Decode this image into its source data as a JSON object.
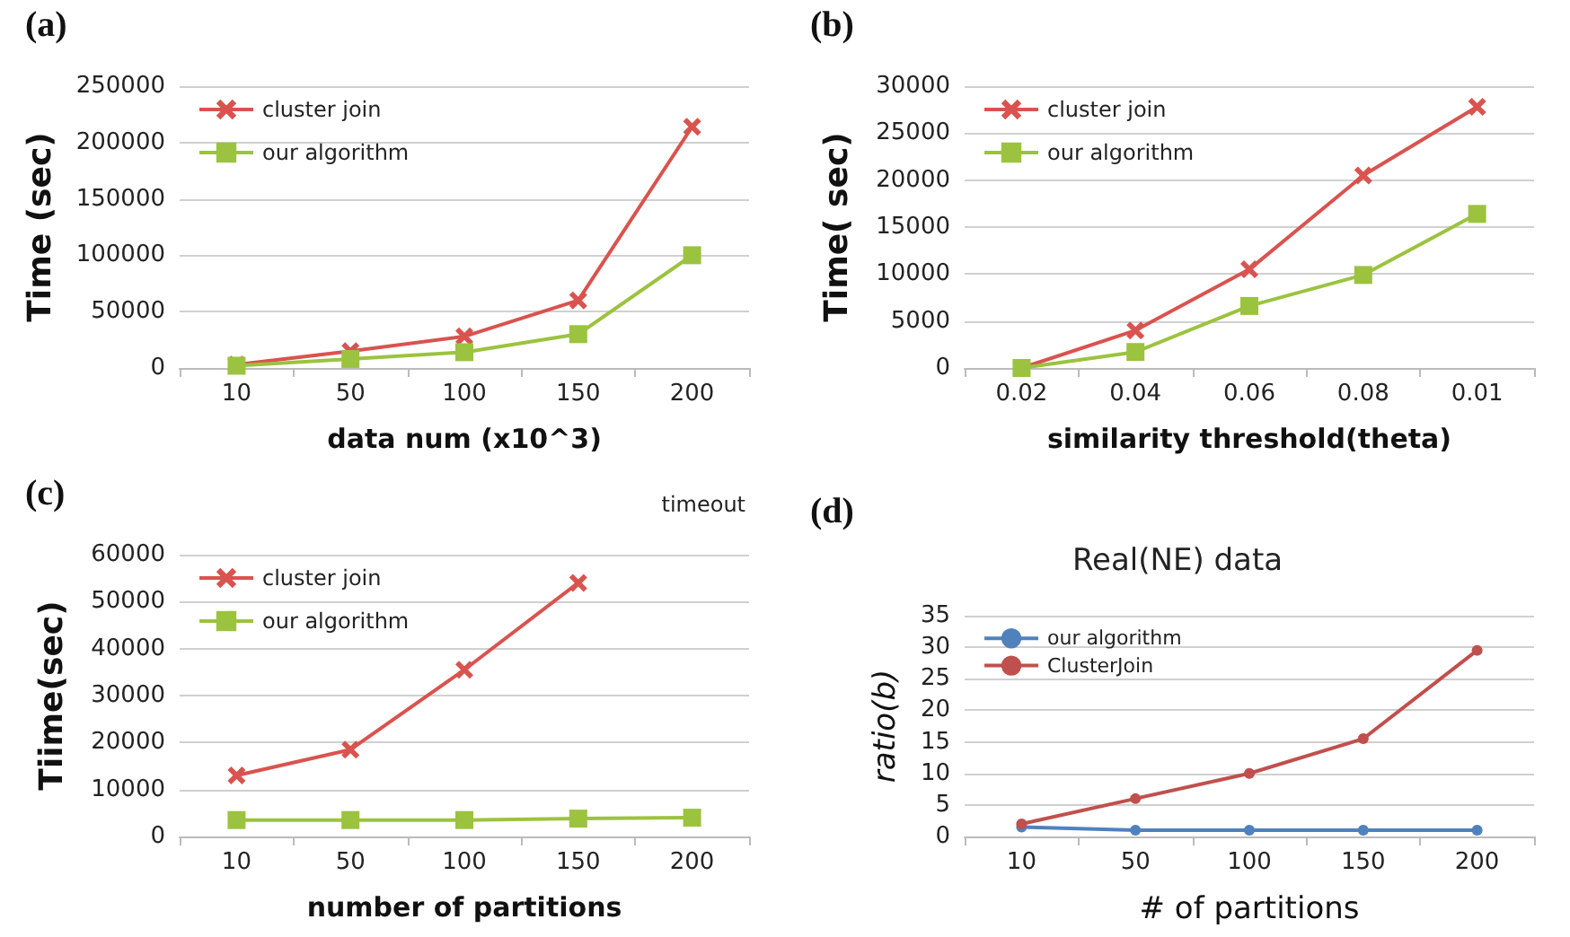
{
  "chart_data": [
    {
      "type": "line",
      "title": "(a)",
      "xlabel": "data num (x10^3)",
      "ylabel": "Time (sec)",
      "categories": [
        "10",
        "50",
        "100",
        "150",
        "200"
      ],
      "ylim": [
        0,
        250000
      ],
      "yticks": [
        0,
        50000,
        100000,
        150000,
        200000,
        250000
      ],
      "grid": "y",
      "legend": "top left",
      "series": [
        {
          "name": "cluster join",
          "color": "#d9534f",
          "marker": "cross",
          "values": [
            3000,
            15000,
            28000,
            60000,
            214000
          ]
        },
        {
          "name": "our algorithm",
          "color": "#9bc33f",
          "marker": "square",
          "values": [
            2000,
            8000,
            14000,
            30000,
            100000
          ]
        }
      ]
    },
    {
      "type": "line",
      "title": "(b)",
      "xlabel": "similarity threshold(theta)",
      "ylabel": "Time( sec)",
      "categories": [
        "0.02",
        "0.04",
        "0.06",
        "0.08",
        "0.01"
      ],
      "ylim": [
        0,
        30000
      ],
      "yticks": [
        0,
        5000,
        10000,
        15000,
        20000,
        25000,
        30000
      ],
      "grid": "y",
      "legend": "top left",
      "series": [
        {
          "name": "cluster join",
          "color": "#d9534f",
          "marker": "cross",
          "values": [
            0,
            4000,
            10500,
            20500,
            27800
          ]
        },
        {
          "name": "our algorithm",
          "color": "#9bc33f",
          "marker": "square",
          "values": [
            0,
            1700,
            6600,
            9900,
            16400
          ]
        }
      ]
    },
    {
      "type": "line",
      "title": "(c)",
      "xlabel": "number of partitions",
      "ylabel": "Tiime(sec)",
      "annotations": [
        "timeout"
      ],
      "categories": [
        "10",
        "50",
        "100",
        "150",
        "200"
      ],
      "ylim": [
        0,
        60000
      ],
      "yticks": [
        0,
        10000,
        20000,
        30000,
        40000,
        50000,
        60000
      ],
      "grid": "y",
      "legend": "top left",
      "series": [
        {
          "name": "cluster join",
          "color": "#d9534f",
          "marker": "cross",
          "values": [
            13000,
            18500,
            35500,
            54000,
            null
          ]
        },
        {
          "name": "our algorithm",
          "color": "#9bc33f",
          "marker": "square",
          "values": [
            3500,
            3500,
            3500,
            3800,
            4000
          ]
        }
      ]
    },
    {
      "type": "line",
      "title": "Real(NE) data",
      "annotations": [
        "(d)"
      ],
      "xlabel": "# of partitions",
      "ylabel": "ratio(b)",
      "categories": [
        "10",
        "50",
        "100",
        "150",
        "200"
      ],
      "ylim": [
        0,
        35
      ],
      "yticks": [
        0,
        5,
        10,
        15,
        20,
        25,
        30,
        35
      ],
      "grid": "y",
      "legend": "top left",
      "series": [
        {
          "name": "our algorithm",
          "color": "#4f81bd",
          "marker": "circle",
          "values": [
            1.5,
            1,
            1,
            1,
            1
          ]
        },
        {
          "name": "ClusterJoin",
          "color": "#c0504d",
          "marker": "circle",
          "values": [
            2,
            6,
            10,
            15.5,
            29.5
          ]
        }
      ]
    }
  ]
}
